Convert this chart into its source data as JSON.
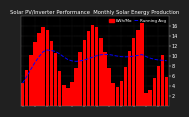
{
  "title": "Monthly Solar Energy Production",
  "full_title": "Solar PV/Inverter Performance  Monthly Solar Energy Production",
  "bar_values": [
    4.5,
    7.2,
    10.1,
    12.8,
    14.5,
    15.8,
    15.2,
    13.0,
    10.5,
    7.0,
    4.2,
    3.5,
    4.8,
    7.5,
    10.8,
    13.2,
    15.0,
    16.2,
    15.8,
    13.5,
    10.8,
    7.5,
    4.5,
    3.8,
    5.0,
    7.8,
    11.0,
    13.5,
    15.2,
    16.5,
    2.5,
    3.2,
    5.5,
    8.0,
    10.2,
    5.8
  ],
  "running_avg": [
    4.5,
    5.85,
    7.27,
    8.65,
    9.82,
    10.82,
    11.16,
    11.04,
    10.86,
    10.37,
    9.76,
    9.24,
    8.97,
    8.87,
    8.97,
    9.16,
    9.41,
    9.72,
    10.0,
    10.19,
    10.27,
    10.25,
    10.1,
    9.93,
    9.82,
    9.78,
    9.82,
    9.93,
    10.07,
    10.24,
    9.84,
    9.52,
    9.29,
    9.16,
    9.09,
    9.0
  ],
  "bar_color": "#ff0000",
  "avg_color": "#0000ff",
  "background_fig": "#202020",
  "background_ax": "#000000",
  "text_color": "#ffffff",
  "ylim": [
    0,
    18
  ],
  "yticks": [
    2,
    4,
    6,
    8,
    10,
    12,
    14,
    16
  ],
  "title_fontsize": 3.8,
  "tick_fontsize": 3.5,
  "grid_color": "#808080",
  "legend_bar": "kWh/Mo",
  "legend_avg": "Running Avg"
}
